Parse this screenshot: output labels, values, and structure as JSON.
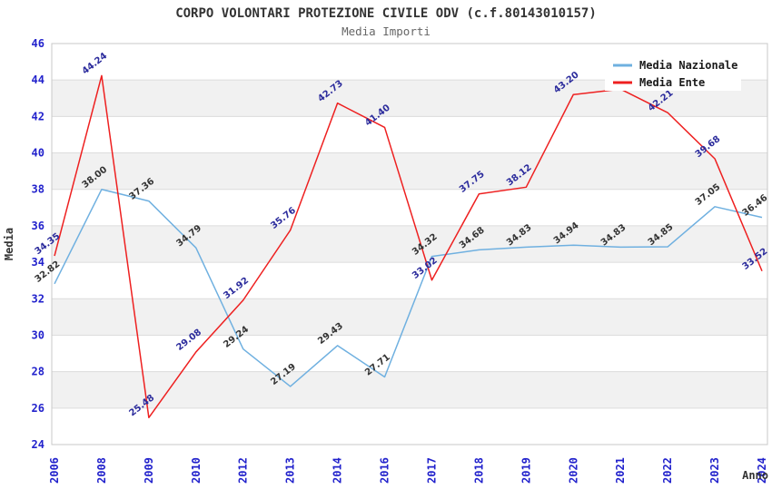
{
  "header": {
    "title": "CORPO VOLONTARI PROTEZIONE CIVILE ODV (c.f.80143010157)",
    "subtitle": "Media Importi"
  },
  "chart_data": {
    "type": "line",
    "title": "CORPO VOLONTARI PROTEZIONE CIVILE ODV (c.f.80143010157)",
    "subtitle": "Media Importi",
    "xlabel": "Anno",
    "ylabel": "Media",
    "ylim": [
      24,
      46
    ],
    "yticks": [
      24,
      26,
      28,
      30,
      32,
      34,
      36,
      38,
      40,
      42,
      44,
      46
    ],
    "grid": true,
    "alternating_bands": true,
    "legend_position": "top-right",
    "categories": [
      "2006",
      "2008",
      "2009",
      "2010",
      "2012",
      "2013",
      "2014",
      "2016",
      "2017",
      "2018",
      "2019",
      "2020",
      "2021",
      "2022",
      "2023",
      "2024"
    ],
    "series": [
      {
        "name": "Media Nazionale",
        "color": "#6fb0e0",
        "label_color": "#333333",
        "values": [
          32.82,
          38.0,
          37.36,
          34.79,
          29.24,
          27.19,
          29.43,
          27.71,
          34.32,
          34.68,
          34.83,
          34.94,
          34.83,
          34.85,
          37.05,
          36.46
        ],
        "labels": [
          "32.82",
          "38.00",
          "37.36",
          "34.79",
          "29.24",
          "27.19",
          "29.43",
          "27.71",
          "34.32",
          "34.68",
          "34.83",
          "34.94",
          "34.83",
          "34.85",
          "37.05",
          "36.46"
        ]
      },
      {
        "name": "Media Ente",
        "color": "#ee2020",
        "label_color": "#2b2b9c",
        "values": [
          34.35,
          44.24,
          25.48,
          29.08,
          31.92,
          35.76,
          42.73,
          41.4,
          33.02,
          37.75,
          38.12,
          43.2,
          43.5,
          42.21,
          39.68,
          33.52
        ],
        "labels": [
          "34.35",
          "44.24",
          "25.48",
          "29.08",
          "31.92",
          "35.76",
          "42.73",
          "41.40",
          "33.02",
          "37.75",
          "38.12",
          "43.20",
          null,
          "42.21",
          "39.68",
          "33.52"
        ]
      }
    ],
    "style": {
      "tick_color": "#2222cc",
      "axis_title_color": "#333333",
      "band_fill": "#f1f1f1",
      "grid_color": "#dcdcdc",
      "border_color": "#c8c8c8",
      "legend_bg": "#ffffff",
      "legend_text_color": "#1a1a1a"
    }
  }
}
